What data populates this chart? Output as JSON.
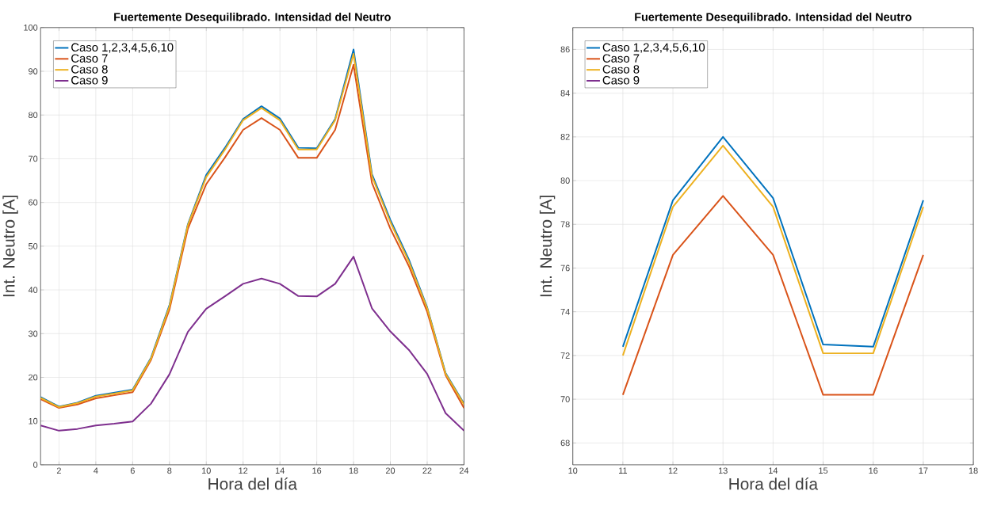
{
  "chart_data": [
    {
      "type": "line",
      "title": "Fuertemente Desequilibrado. Intensidad del Neutro",
      "xlabel": "Hora del día",
      "ylabel": "Int. Neutro [A]",
      "x": [
        1,
        2,
        3,
        4,
        5,
        6,
        7,
        8,
        9,
        10,
        11,
        12,
        13,
        14,
        15,
        16,
        17,
        18,
        19,
        20,
        21,
        22,
        23,
        24
      ],
      "series": [
        {
          "name": "Caso 1,2,3,4,5,6,10",
          "color": "#0072bd",
          "values": [
            15.5,
            13.3,
            14.2,
            15.8,
            16.5,
            17.2,
            24.5,
            36.5,
            55,
            66.3,
            72.4,
            79.1,
            82.0,
            79.2,
            72.5,
            72.4,
            79.1,
            95,
            66.5,
            56,
            47,
            36,
            21,
            14
          ]
        },
        {
          "name": "Caso 7",
          "color": "#d95319",
          "values": [
            15,
            13,
            13.8,
            15.2,
            15.9,
            16.6,
            24,
            35.5,
            54,
            64.2,
            70.2,
            76.6,
            79.3,
            76.6,
            70.2,
            70.2,
            76.6,
            91.5,
            64.5,
            54,
            45.5,
            35,
            20.5,
            13
          ]
        },
        {
          "name": "Caso 8",
          "color": "#edb120",
          "values": [
            15.3,
            13.2,
            14.1,
            15.6,
            16.3,
            17,
            24.3,
            36.2,
            54.8,
            65.8,
            72.0,
            78.8,
            81.6,
            78.8,
            72.1,
            72.1,
            78.8,
            94,
            66,
            55.5,
            46.5,
            35.8,
            20.8,
            13.8
          ]
        },
        {
          "name": "Caso 9",
          "color": "#7e2f8e",
          "values": [
            9,
            7.8,
            8.2,
            9,
            9.4,
            9.9,
            14,
            20.7,
            30.4,
            35.7,
            38.5,
            41.4,
            42.6,
            41.4,
            38.6,
            38.5,
            41.4,
            47.6,
            35.8,
            30.5,
            26.3,
            20.8,
            11.8,
            7.8
          ]
        }
      ],
      "xlim": [
        1,
        24
      ],
      "ylim": [
        0,
        100
      ],
      "xticks": [
        2,
        4,
        6,
        8,
        10,
        12,
        14,
        16,
        18,
        20,
        22,
        24
      ],
      "yticks": [
        0,
        10,
        20,
        30,
        40,
        50,
        60,
        70,
        80,
        90,
        100
      ],
      "grid": true,
      "legend": "top left"
    },
    {
      "type": "line",
      "title": "Fuertemente Desequilibrado. Intensidad del Neutro",
      "xlabel": "Hora del día",
      "ylabel": "Int. Neutro [A]",
      "x": [
        11,
        12,
        13,
        14,
        15,
        16,
        17
      ],
      "series": [
        {
          "name": "Caso 1,2,3,4,5,6,10",
          "color": "#0072bd",
          "values": [
            72.4,
            79.1,
            82.0,
            79.2,
            72.5,
            72.4,
            79.1
          ]
        },
        {
          "name": "Caso 7",
          "color": "#d95319",
          "values": [
            70.2,
            76.6,
            79.3,
            76.6,
            70.2,
            70.2,
            76.6
          ]
        },
        {
          "name": "Caso 8",
          "color": "#edb120",
          "values": [
            72.0,
            78.8,
            81.6,
            78.8,
            72.1,
            72.1,
            78.8
          ]
        },
        {
          "name": "Caso 9",
          "color": "#7e2f8e",
          "values": [
            null,
            null,
            null,
            null,
            null,
            null,
            null
          ]
        }
      ],
      "xlim": [
        10,
        18
      ],
      "ylim": [
        67,
        87
      ],
      "xticks": [
        10,
        11,
        12,
        13,
        14,
        15,
        16,
        17,
        18
      ],
      "yticks": [
        68,
        70,
        72,
        74,
        76,
        78,
        80,
        82,
        84,
        86
      ],
      "grid": true,
      "legend": "top left"
    }
  ]
}
